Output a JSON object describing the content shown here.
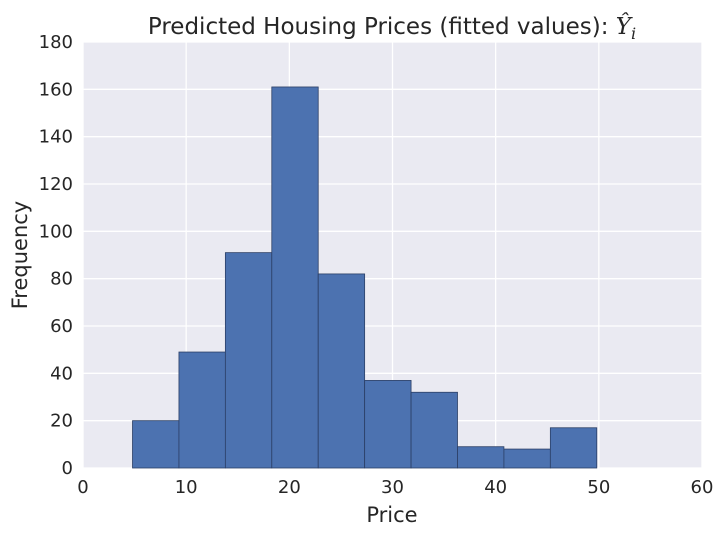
{
  "chart_data": {
    "type": "bar",
    "title": "Predicted Housing Prices (fitted values): ",
    "title_math": "Ŷ",
    "title_math_sub": "i",
    "xlabel": "Price",
    "ylabel": "Frequency",
    "xlim": [
      0,
      60
    ],
    "ylim": [
      0,
      180
    ],
    "xticks": [
      "0",
      "10",
      "20",
      "30",
      "40",
      "50",
      "60"
    ],
    "yticks": [
      "0",
      "20",
      "40",
      "60",
      "80",
      "100",
      "120",
      "140",
      "160",
      "180"
    ],
    "bin_edges": [
      4.8,
      9.3,
      13.8,
      18.3,
      22.8,
      27.3,
      31.8,
      36.3,
      40.8,
      45.3,
      49.8
    ],
    "values": [
      20,
      49,
      91,
      161,
      82,
      37,
      32,
      9,
      8,
      17
    ],
    "grid": true,
    "colors": {
      "bar_fill": "#4c72b0",
      "bar_edge": "#2b3f66",
      "plot_bg": "#eaeaf2",
      "grid": "#ffffff"
    }
  }
}
